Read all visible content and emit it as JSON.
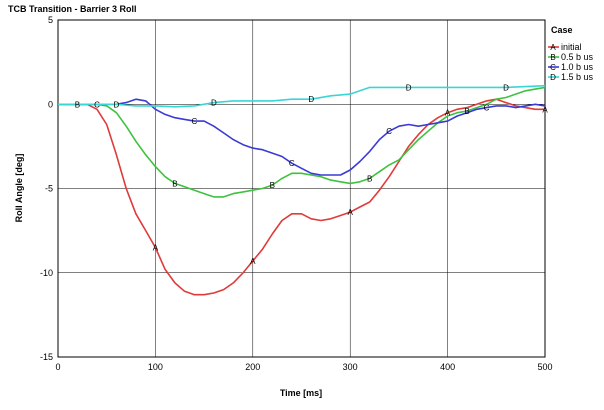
{
  "chart_data": {
    "type": "line",
    "title": "TCB Transition - Barrier 3 Roll",
    "xlabel": "Time [ms]",
    "ylabel": "Roll Angle [deg]",
    "xlim": [
      0,
      500
    ],
    "ylim": [
      -15,
      5
    ],
    "x_ticks": [
      "0",
      "100",
      "200",
      "300",
      "400",
      "500"
    ],
    "y_ticks": [
      "5",
      "0",
      "-5",
      "-10",
      "-15"
    ],
    "grid": true,
    "legend": {
      "title": "Case",
      "position": "right",
      "entries": [
        {
          "marker": "A",
          "name": "initial"
        },
        {
          "marker": "B",
          "name": "0.5 b us"
        },
        {
          "marker": "C",
          "name": "1.0 b us"
        },
        {
          "marker": "D",
          "name": "1.5 b us"
        }
      ]
    },
    "series": [
      {
        "name": "initial",
        "marker": "A",
        "color": "#e03a3a",
        "x": [
          0,
          30,
          40,
          50,
          60,
          70,
          80,
          90,
          100,
          110,
          120,
          130,
          140,
          150,
          160,
          170,
          180,
          190,
          200,
          210,
          220,
          230,
          240,
          250,
          260,
          270,
          280,
          290,
          300,
          310,
          320,
          330,
          340,
          350,
          360,
          370,
          380,
          390,
          400,
          410,
          420,
          430,
          440,
          450,
          460,
          470,
          480,
          490,
          500
        ],
        "y": [
          0,
          0,
          -0.3,
          -1.2,
          -3,
          -5,
          -6.5,
          -7.5,
          -8.5,
          -9.8,
          -10.6,
          -11.1,
          -11.3,
          -11.3,
          -11.2,
          -11,
          -10.6,
          -10,
          -9.3,
          -8.6,
          -7.7,
          -6.9,
          -6.5,
          -6.5,
          -6.8,
          -6.9,
          -6.8,
          -6.6,
          -6.4,
          -6.1,
          -5.8,
          -5.1,
          -4.3,
          -3.4,
          -2.5,
          -1.8,
          -1.2,
          -0.8,
          -0.5,
          -0.3,
          -0.2,
          0,
          0.2,
          0.3,
          0.1,
          -0.1,
          -0.2,
          -0.3,
          -0.3
        ]
      },
      {
        "name": "0.5 b us",
        "marker": "B",
        "color": "#3ec23e",
        "x": [
          0,
          40,
          50,
          60,
          70,
          80,
          90,
          100,
          110,
          120,
          130,
          140,
          150,
          160,
          170,
          180,
          190,
          200,
          210,
          220,
          230,
          240,
          250,
          260,
          270,
          280,
          290,
          300,
          310,
          320,
          330,
          340,
          350,
          360,
          370,
          380,
          390,
          400,
          410,
          420,
          430,
          440,
          450,
          460,
          470,
          480,
          490,
          500
        ],
        "y": [
          0,
          0,
          -0.1,
          -0.5,
          -1.3,
          -2.2,
          -3,
          -3.7,
          -4.3,
          -4.7,
          -4.9,
          -5.1,
          -5.3,
          -5.5,
          -5.5,
          -5.3,
          -5.2,
          -5.1,
          -5,
          -4.8,
          -4.4,
          -4.1,
          -4.1,
          -4.2,
          -4.3,
          -4.5,
          -4.6,
          -4.7,
          -4.6,
          -4.4,
          -4,
          -3.6,
          -3.3,
          -2.7,
          -2.1,
          -1.6,
          -1.1,
          -0.7,
          -0.5,
          -0.4,
          -0.2,
          0,
          0.3,
          0.4,
          0.6,
          0.8,
          0.9,
          1
        ]
      },
      {
        "name": "1.0 b us",
        "marker": "C",
        "color": "#3a3ad6",
        "x": [
          0,
          40,
          60,
          70,
          80,
          90,
          100,
          110,
          120,
          130,
          140,
          150,
          160,
          170,
          180,
          190,
          200,
          210,
          220,
          230,
          240,
          250,
          260,
          270,
          280,
          290,
          300,
          310,
          320,
          330,
          340,
          350,
          360,
          370,
          380,
          390,
          400,
          410,
          420,
          430,
          440,
          450,
          460,
          470,
          480,
          490,
          500
        ],
        "y": [
          0,
          0,
          0,
          0.1,
          0.3,
          0.2,
          -0.3,
          -0.6,
          -0.8,
          -0.9,
          -1,
          -1,
          -1.3,
          -1.7,
          -2.1,
          -2.4,
          -2.6,
          -2.7,
          -2.9,
          -3.1,
          -3.5,
          -3.8,
          -4.1,
          -4.2,
          -4.2,
          -4.2,
          -3.9,
          -3.4,
          -2.8,
          -2.1,
          -1.6,
          -1.3,
          -1.2,
          -1.3,
          -1.2,
          -1.1,
          -1,
          -0.7,
          -0.5,
          -0.3,
          -0.2,
          -0.1,
          -0.1,
          -0.2,
          -0.1,
          0,
          -0.1
        ]
      },
      {
        "name": "1.5 b us",
        "marker": "D",
        "color": "#3ad6d6",
        "x": [
          0,
          60,
          80,
          100,
          120,
          140,
          160,
          180,
          200,
          220,
          240,
          260,
          280,
          300,
          310,
          320,
          340,
          360,
          380,
          400,
          420,
          440,
          460,
          480,
          500
        ],
        "y": [
          0,
          0,
          -0.1,
          -0.1,
          -0.15,
          -0.1,
          0.1,
          0.2,
          0.2,
          0.2,
          0.3,
          0.3,
          0.5,
          0.6,
          0.8,
          1,
          1,
          1,
          1,
          1,
          1,
          1,
          1,
          1.05,
          1.1
        ]
      }
    ],
    "marker_x": {
      "A": [
        100,
        200,
        300,
        400,
        500
      ],
      "B": [
        20,
        120,
        220,
        320,
        420
      ],
      "C": [
        40,
        140,
        240,
        340,
        440
      ],
      "D": [
        60,
        160,
        260,
        360,
        460
      ]
    }
  }
}
